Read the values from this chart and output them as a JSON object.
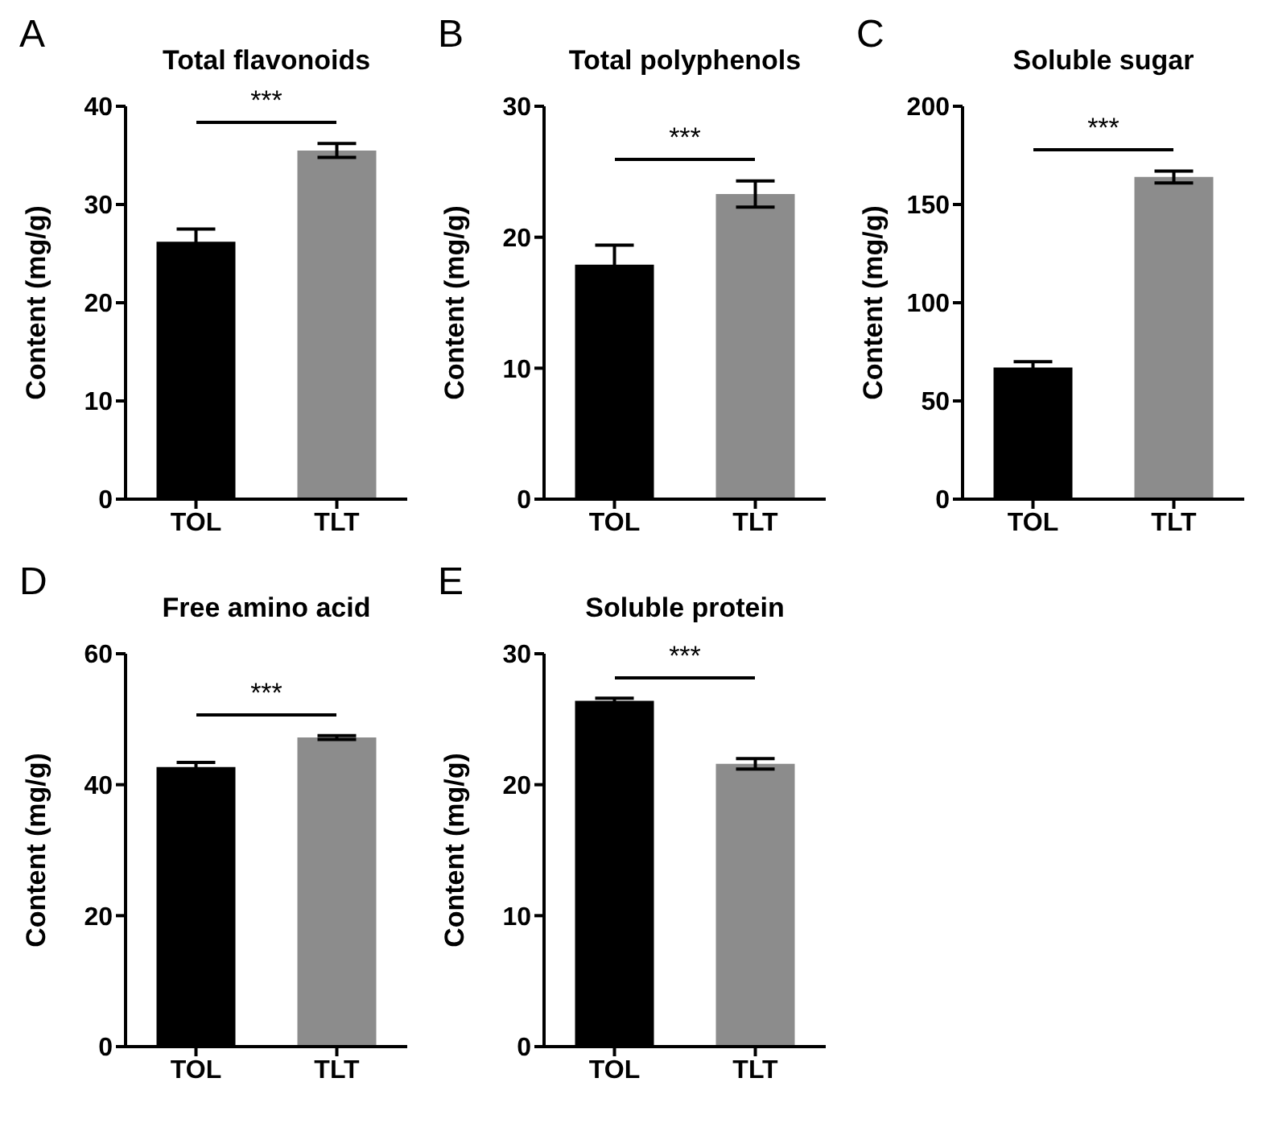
{
  "chart_data": [
    {
      "type": "bar",
      "title": "Total flavonoids",
      "ylabel": "Content (mg/g)",
      "categories": [
        "TOL",
        "TLT"
      ],
      "values": [
        26.2,
        35.5
      ],
      "errors": [
        1.3,
        0.7
      ],
      "colors": [
        "#000000",
        "#8c8c8c"
      ],
      "ylim": [
        0,
        40
      ],
      "yticks": [
        0,
        10,
        20,
        30,
        40
      ],
      "annotations": [
        "A",
        "***"
      ]
    },
    {
      "type": "bar",
      "title": "Total polyphenols",
      "ylabel": "Content (mg/g)",
      "categories": [
        "TOL",
        "TLT"
      ],
      "values": [
        17.9,
        23.3
      ],
      "errors": [
        1.5,
        1.0
      ],
      "colors": [
        "#000000",
        "#8c8c8c"
      ],
      "ylim": [
        0,
        30
      ],
      "yticks": [
        0,
        10,
        20,
        30
      ],
      "annotations": [
        "B",
        "***"
      ]
    },
    {
      "type": "bar",
      "title": "Soluble sugar",
      "ylabel": "Content (mg/g)",
      "categories": [
        "TOL",
        "TLT"
      ],
      "values": [
        67,
        164
      ],
      "errors": [
        3,
        3
      ],
      "colors": [
        "#000000",
        "#8c8c8c"
      ],
      "ylim": [
        0,
        200
      ],
      "yticks": [
        0,
        50,
        100,
        150,
        200
      ],
      "annotations": [
        "C",
        "***"
      ]
    },
    {
      "type": "bar",
      "title": "Free amino acid",
      "ylabel": "Content (mg/g)",
      "categories": [
        "TOL",
        "TLT"
      ],
      "values": [
        42.7,
        47.2
      ],
      "errors": [
        0.7,
        0.3
      ],
      "colors": [
        "#000000",
        "#8c8c8c"
      ],
      "ylim": [
        0,
        60
      ],
      "yticks": [
        0,
        20,
        40,
        60
      ],
      "annotations": [
        "D",
        "***"
      ]
    },
    {
      "type": "bar",
      "title": "Soluble protein",
      "ylabel": "Content (mg/g)",
      "categories": [
        "TOL",
        "TLT"
      ],
      "values": [
        26.4,
        21.6
      ],
      "errors": [
        0.2,
        0.4
      ],
      "colors": [
        "#000000",
        "#8c8c8c"
      ],
      "ylim": [
        0,
        30
      ],
      "yticks": [
        0,
        10,
        20,
        30
      ],
      "annotations": [
        "E",
        "***"
      ]
    }
  ]
}
